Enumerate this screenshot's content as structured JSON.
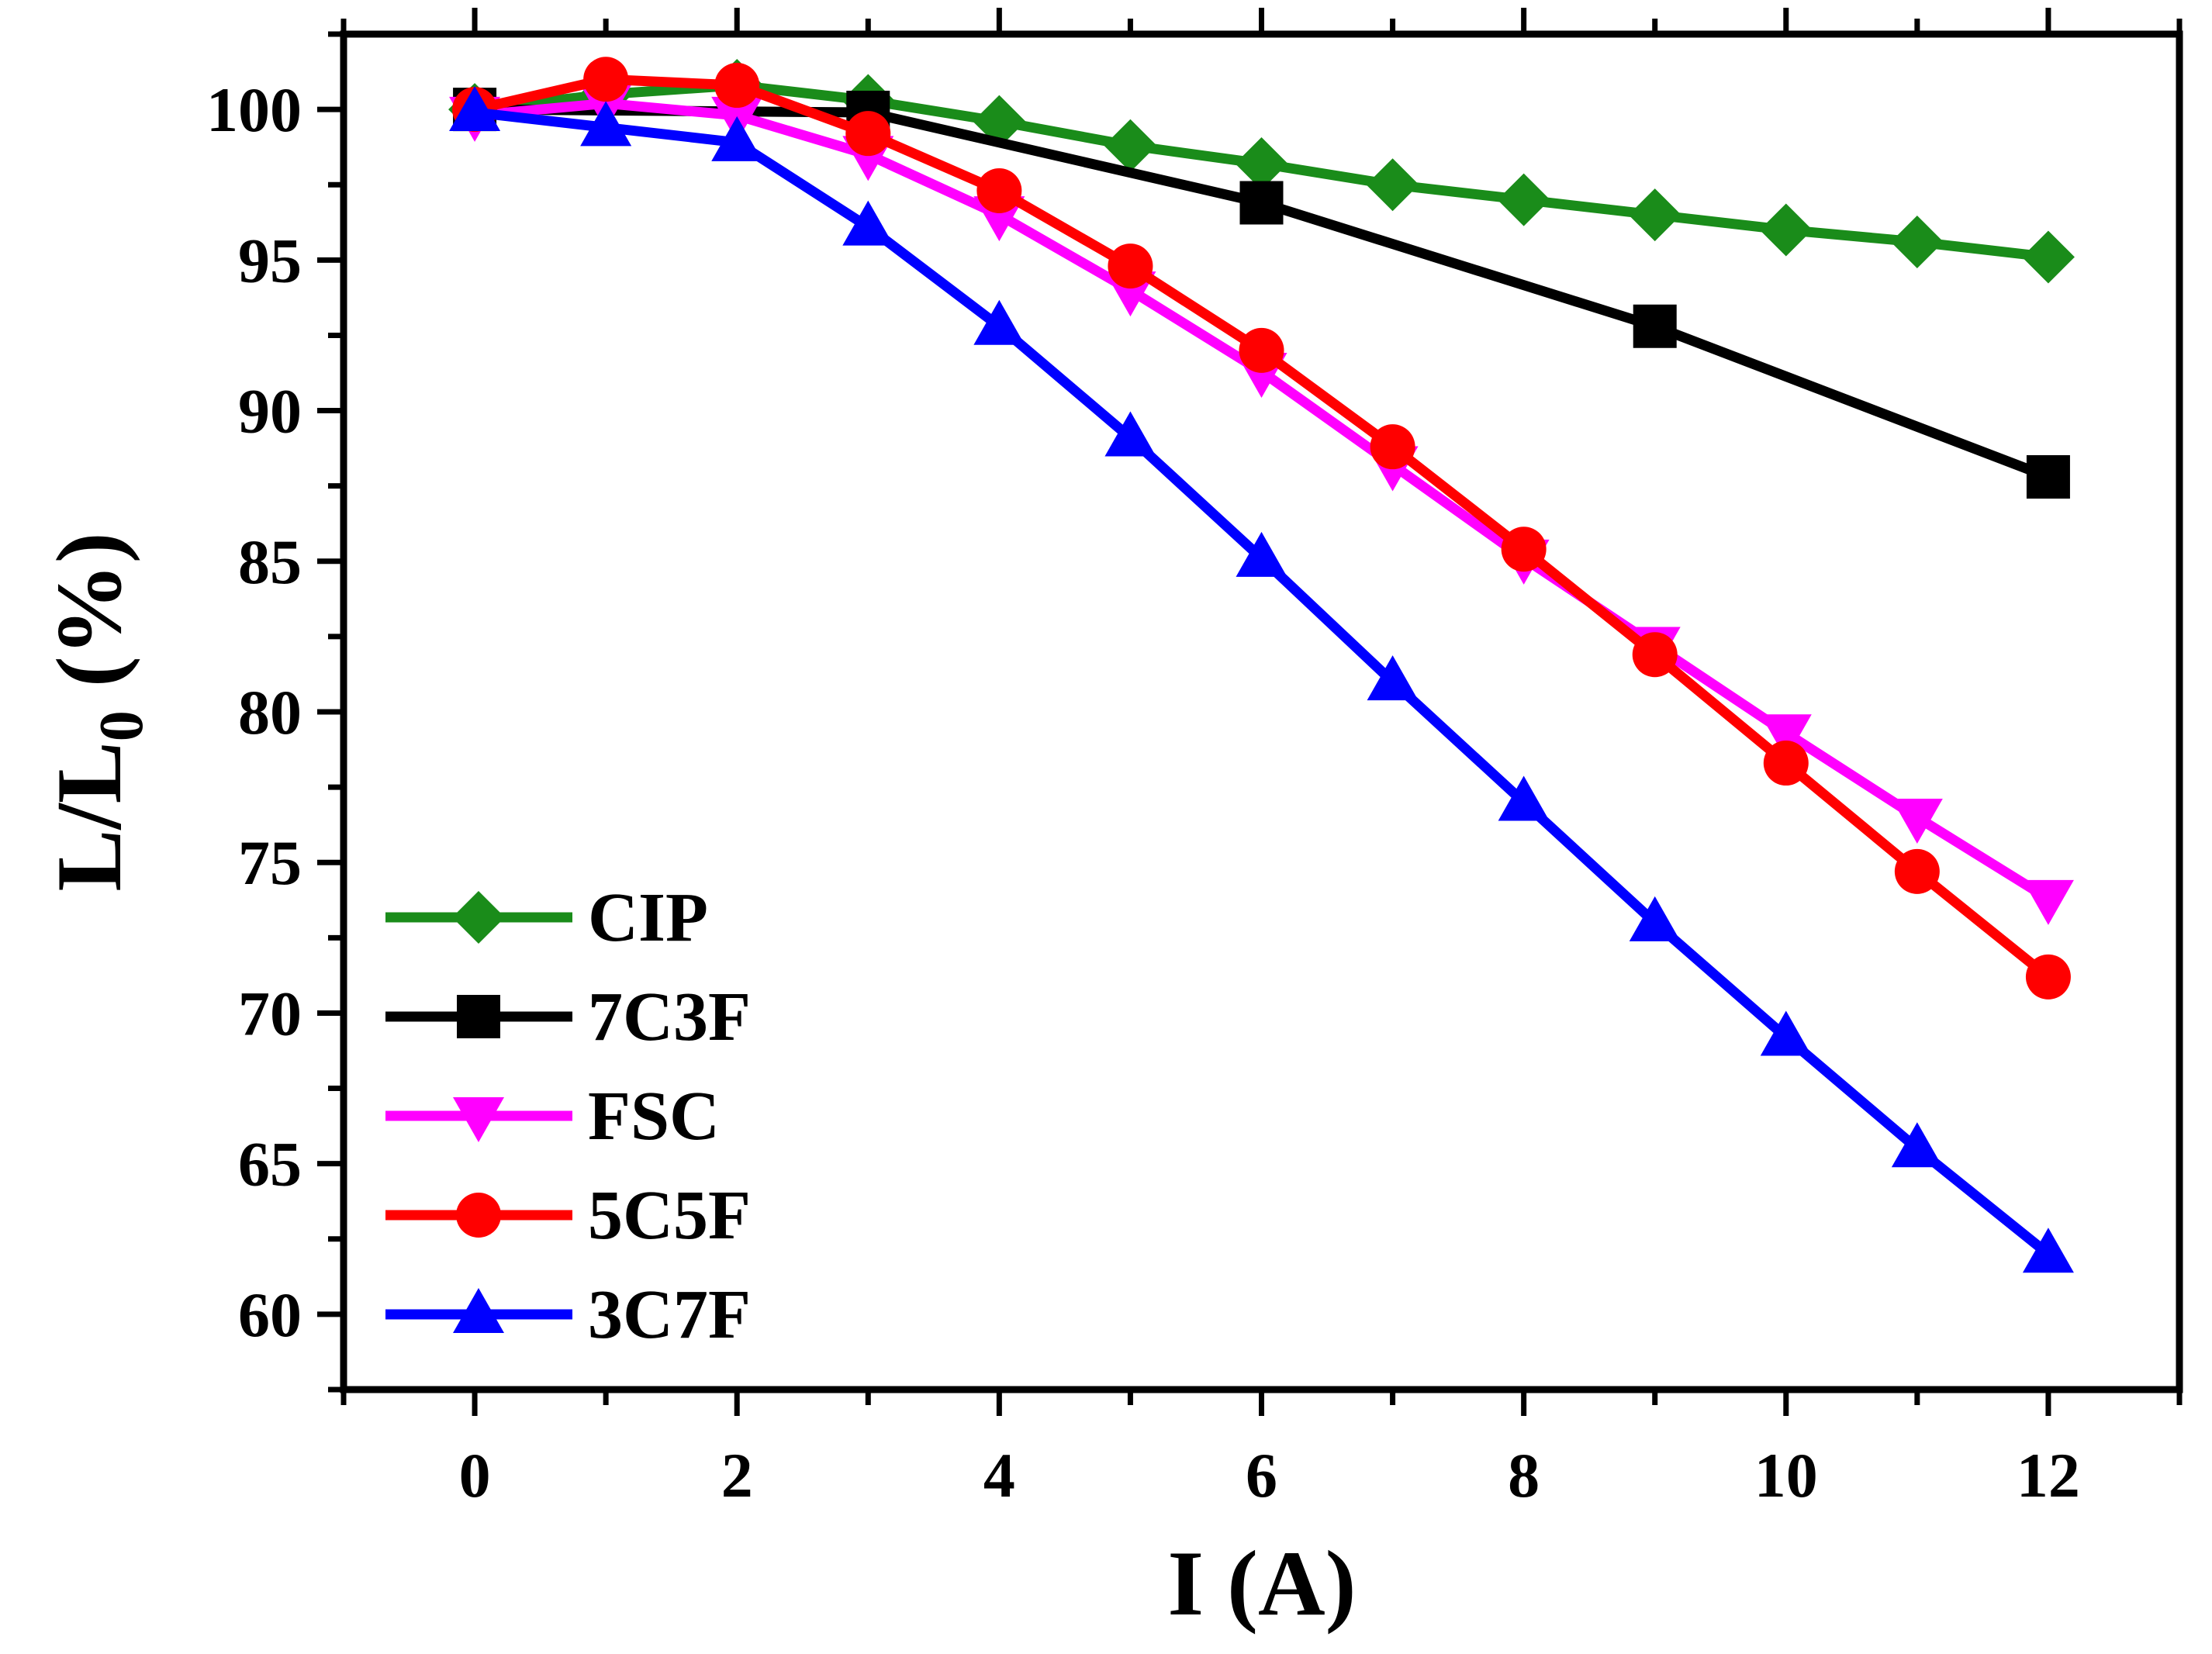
{
  "chart_data": {
    "type": "line",
    "title": "",
    "xlabel": "I (A)",
    "ylabel_main": "L/L",
    "ylabel_sub": "0",
    "ylabel_suffix": " (%)",
    "xlim": [
      -1,
      13
    ],
    "ylim": [
      57.5,
      102.5
    ],
    "xticks": [
      0,
      2,
      4,
      6,
      8,
      10,
      12
    ],
    "yticks": [
      60,
      65,
      70,
      75,
      80,
      85,
      90,
      95,
      100
    ],
    "legend_position": "bottom-left",
    "series": [
      {
        "name": "CIP",
        "color": "#1a8c1a",
        "marker": "diamond",
        "x": [
          0,
          1,
          2,
          3,
          4,
          5,
          6,
          7,
          8,
          9,
          10,
          11,
          12
        ],
        "y": [
          100.0,
          100.5,
          100.8,
          100.3,
          99.6,
          98.8,
          98.2,
          97.5,
          97.0,
          96.5,
          96.0,
          95.6,
          95.1
        ]
      },
      {
        "name": "7C3F",
        "color": "#000000",
        "marker": "square",
        "x": [
          0,
          3,
          6,
          9,
          12
        ],
        "y": [
          100.0,
          99.9,
          96.9,
          92.8,
          87.8
        ]
      },
      {
        "name": "FSC",
        "color": "#ff00ff",
        "marker": "triangle-down",
        "x": [
          0,
          1,
          2,
          3,
          4,
          5,
          6,
          7,
          8,
          9,
          10,
          11,
          12
        ],
        "y": [
          99.8,
          100.2,
          99.8,
          98.5,
          96.5,
          94.0,
          91.3,
          88.2,
          85.1,
          82.2,
          79.3,
          76.5,
          73.8
        ]
      },
      {
        "name": "5C5F",
        "color": "#ff0000",
        "marker": "circle",
        "x": [
          0,
          1,
          2,
          3,
          4,
          5,
          6,
          7,
          8,
          9,
          10,
          11,
          12
        ],
        "y": [
          100.0,
          101.0,
          100.8,
          99.2,
          97.3,
          94.8,
          92.0,
          88.8,
          85.4,
          81.9,
          78.3,
          74.7,
          71.2
        ]
      },
      {
        "name": "3C7F",
        "color": "#0000ff",
        "marker": "triangle-up",
        "x": [
          0,
          1,
          2,
          3,
          4,
          5,
          6,
          7,
          8,
          9,
          10,
          11,
          12
        ],
        "y": [
          99.9,
          99.4,
          98.9,
          96.1,
          92.8,
          89.1,
          85.1,
          81.0,
          77.0,
          73.0,
          69.2,
          65.5,
          62.0
        ]
      }
    ]
  }
}
